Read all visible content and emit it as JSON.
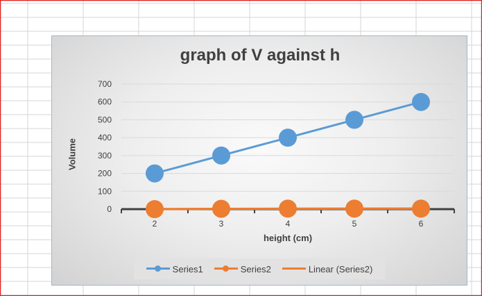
{
  "colors": {
    "series1": "#5b9bd5",
    "series2": "#ed7d31",
    "gridline": "#d9d9d9",
    "axis": "#404040",
    "sheet_grid": "#d4d4d4",
    "window_border": "#e02020"
  },
  "chart_data": {
    "type": "line",
    "title": "graph of V against h",
    "xlabel": "height (cm)",
    "ylabel": "Volume",
    "categories": [
      "2",
      "3",
      "4",
      "5",
      "6"
    ],
    "ylim": [
      0,
      700
    ],
    "yticks": [
      "0",
      "100",
      "200",
      "300",
      "400",
      "500",
      "600",
      "700"
    ],
    "grid": true,
    "legend_position": "bottom",
    "series": [
      {
        "name": "Series1",
        "values": [
          200,
          300,
          400,
          500,
          600
        ],
        "marker": "circle"
      },
      {
        "name": "Series2",
        "values": [
          0,
          2,
          3,
          3,
          3
        ],
        "marker": "circle"
      }
    ],
    "trendline": {
      "name": "Linear (Series2)",
      "of": "Series2",
      "type": "linear"
    }
  }
}
